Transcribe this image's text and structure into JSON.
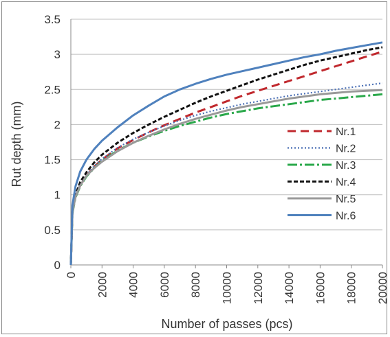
{
  "chart_data": {
    "type": "line",
    "title": "",
    "xlabel": "Number of passes (pcs)",
    "ylabel": "Rut depth (mm)",
    "xlim": [
      0,
      20000
    ],
    "ylim": [
      0,
      3.5
    ],
    "x_ticks": [
      0,
      2000,
      4000,
      6000,
      8000,
      10000,
      12000,
      14000,
      16000,
      18000,
      20000
    ],
    "y_ticks": [
      0,
      0.5,
      1,
      1.5,
      2,
      2.5,
      3,
      3.5
    ],
    "y_tick_labels": [
      "0",
      "0.5",
      "1",
      "1.5",
      "2",
      "2.5",
      "3",
      "3.5"
    ],
    "grid": "horizontal",
    "legend_position": "right",
    "x": [
      0,
      100,
      300,
      600,
      1000,
      1500,
      2000,
      3000,
      4000,
      5000,
      6000,
      7000,
      8000,
      9000,
      10000,
      11000,
      12000,
      13000,
      14000,
      15000,
      16000,
      17000,
      18000,
      19000,
      20000
    ],
    "series": [
      {
        "name": "Nr.1",
        "color": "#c0282d",
        "dash": "12,7",
        "width": 3,
        "values": [
          0,
          0.75,
          0.97,
          1.13,
          1.27,
          1.4,
          1.5,
          1.66,
          1.78,
          1.89,
          1.99,
          2.08,
          2.17,
          2.25,
          2.33,
          2.41,
          2.48,
          2.55,
          2.62,
          2.69,
          2.76,
          2.83,
          2.9,
          2.97,
          3.04
        ]
      },
      {
        "name": "Nr.2",
        "color": "#4a6fb5",
        "dash": "2,3",
        "width": 2.2,
        "values": [
          0,
          0.75,
          0.98,
          1.15,
          1.28,
          1.41,
          1.51,
          1.67,
          1.79,
          1.89,
          1.98,
          2.06,
          2.13,
          2.19,
          2.24,
          2.29,
          2.33,
          2.37,
          2.41,
          2.44,
          2.47,
          2.5,
          2.53,
          2.56,
          2.59
        ]
      },
      {
        "name": "Nr.3",
        "color": "#2aa84a",
        "dash": "14,4,3,4",
        "width": 3,
        "values": [
          0,
          0.74,
          0.96,
          1.12,
          1.26,
          1.38,
          1.48,
          1.63,
          1.74,
          1.83,
          1.91,
          1.98,
          2.04,
          2.1,
          2.15,
          2.19,
          2.23,
          2.26,
          2.29,
          2.32,
          2.35,
          2.37,
          2.39,
          2.41,
          2.43
        ]
      },
      {
        "name": "Nr.4",
        "color": "#111111",
        "dash": "6,3",
        "width": 3,
        "values": [
          0,
          0.77,
          1.0,
          1.18,
          1.32,
          1.46,
          1.57,
          1.74,
          1.88,
          2.0,
          2.11,
          2.21,
          2.31,
          2.4,
          2.48,
          2.56,
          2.64,
          2.71,
          2.78,
          2.85,
          2.91,
          2.96,
          3.01,
          3.06,
          3.1
        ]
      },
      {
        "name": "Nr.5",
        "color": "#999999",
        "dash": "",
        "width": 3,
        "values": [
          0,
          0.75,
          0.97,
          1.13,
          1.27,
          1.38,
          1.47,
          1.62,
          1.74,
          1.84,
          1.93,
          2.01,
          2.08,
          2.14,
          2.2,
          2.25,
          2.29,
          2.33,
          2.37,
          2.4,
          2.43,
          2.45,
          2.47,
          2.48,
          2.49
        ]
      },
      {
        "name": "Nr.6",
        "color": "#4f81bd",
        "dash": "",
        "width": 3,
        "values": [
          0,
          0.85,
          1.12,
          1.33,
          1.5,
          1.65,
          1.77,
          1.96,
          2.13,
          2.27,
          2.4,
          2.5,
          2.58,
          2.65,
          2.71,
          2.76,
          2.81,
          2.86,
          2.91,
          2.96,
          3.0,
          3.05,
          3.09,
          3.13,
          3.17
        ]
      }
    ]
  }
}
